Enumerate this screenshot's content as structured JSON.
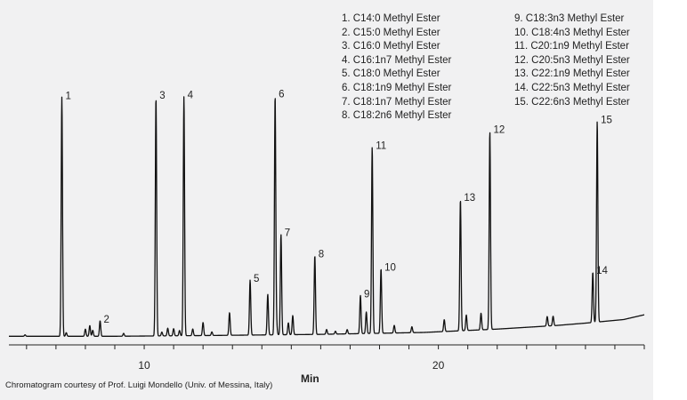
{
  "chart_data": {
    "type": "line",
    "xlabel": "Min",
    "x_ticks": [
      10,
      20
    ],
    "xlim": [
      5.4,
      27.0
    ],
    "ylim": [
      0,
      105
    ],
    "baseline_points": [
      [
        5.4,
        1.0
      ],
      [
        9.0,
        1.0
      ],
      [
        12.0,
        1.3
      ],
      [
        16.0,
        1.8
      ],
      [
        19.5,
        2.6
      ],
      [
        22.0,
        4.0
      ],
      [
        24.0,
        5.5
      ],
      [
        25.0,
        6.5
      ],
      [
        26.3,
        8.0
      ],
      [
        27.0,
        10.0
      ]
    ],
    "peaks": [
      {
        "label": "1",
        "time": 7.2,
        "height": 100
      },
      {
        "label": "2",
        "time": 8.5,
        "height": 6.5
      },
      {
        "label": "3",
        "time": 10.4,
        "height": 100
      },
      {
        "label": "4",
        "time": 11.35,
        "height": 100
      },
      {
        "label": "5",
        "time": 13.6,
        "height": 23
      },
      {
        "label": "6",
        "time": 14.45,
        "height": 100
      },
      {
        "label": "7",
        "time": 14.65,
        "height": 42
      },
      {
        "label": "8",
        "time": 15.8,
        "height": 33
      },
      {
        "label": "9",
        "time": 17.35,
        "height": 16
      },
      {
        "label": "10",
        "time": 18.05,
        "height": 27
      },
      {
        "label": "11",
        "time": 17.75,
        "height": 78
      },
      {
        "label": "12",
        "time": 21.75,
        "height": 83
      },
      {
        "label": "13",
        "time": 20.75,
        "height": 55
      },
      {
        "label": "14",
        "time": 25.25,
        "height": 21
      },
      {
        "label": "15",
        "time": 25.4,
        "height": 84
      }
    ],
    "minor_peaks": [
      {
        "time": 5.95,
        "height": 0.6
      },
      {
        "time": 7.35,
        "height": 1.5
      },
      {
        "time": 8.0,
        "height": 3.0
      },
      {
        "time": 8.15,
        "height": 4.5
      },
      {
        "time": 8.25,
        "height": 2.5
      },
      {
        "time": 9.3,
        "height": 1.2
      },
      {
        "time": 10.6,
        "height": 1.6
      },
      {
        "time": 10.8,
        "height": 3.2
      },
      {
        "time": 11.0,
        "height": 3.0
      },
      {
        "time": 11.2,
        "height": 2.2
      },
      {
        "time": 11.65,
        "height": 2.8
      },
      {
        "time": 12.0,
        "height": 5.5
      },
      {
        "time": 12.3,
        "height": 1.5
      },
      {
        "time": 12.9,
        "height": 9.5
      },
      {
        "time": 14.2,
        "height": 17
      },
      {
        "time": 14.5,
        "height": 4
      },
      {
        "time": 14.9,
        "height": 5
      },
      {
        "time": 15.05,
        "height": 8
      },
      {
        "time": 16.2,
        "height": 2
      },
      {
        "time": 16.5,
        "height": 1.2
      },
      {
        "time": 16.9,
        "height": 1.8
      },
      {
        "time": 17.55,
        "height": 9
      },
      {
        "time": 18.5,
        "height": 3.2
      },
      {
        "time": 19.1,
        "height": 2.5
      },
      {
        "time": 20.2,
        "height": 5
      },
      {
        "time": 20.95,
        "height": 6.5
      },
      {
        "time": 21.45,
        "height": 7
      },
      {
        "time": 23.7,
        "height": 4
      },
      {
        "time": 23.9,
        "height": 4
      }
    ],
    "legend": [
      "1. C14:0 Methyl Ester",
      "2. C15:0 Methyl Ester",
      "3. C16:0 Methyl Ester",
      "4. C16:1n7 Methyl Ester",
      "5. C18:0 Methyl Ester",
      "6. C18:1n9 Methyl Ester",
      "7. C18:1n7 Methyl Ester",
      "8. C18:2n6 Methyl Ester",
      "9. C18:3n3 Methyl Ester",
      "10. C18:4n3 Methyl Ester",
      "11. C20:1n9 Methyl Ester",
      "12. C20:5n3 Methyl Ester",
      "13. C22:1n9 Methyl Ester",
      "14. C22:5n3 Methyl Ester",
      "15. C22:6n3 Methyl Ester"
    ],
    "legend_placement": "top-right",
    "grid": false,
    "line_color": "#111111",
    "background_color": "#f1f1f2"
  },
  "caption": "Chromatogram courtesy of Prof. Luigi Mondello (Univ. of Messina, Italy)"
}
